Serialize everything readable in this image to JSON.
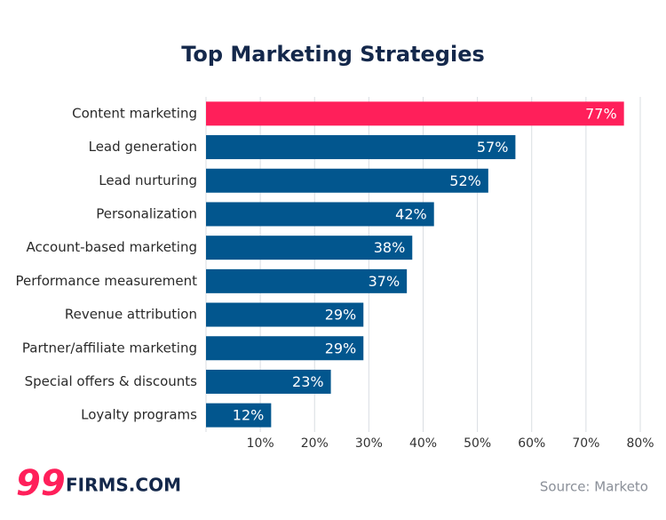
{
  "chart_data": {
    "type": "bar",
    "orientation": "horizontal",
    "title": "Top Marketing Strategies",
    "categories": [
      "Content marketing",
      "Lead generation",
      "Lead nurturing",
      "Personalization",
      "Account-based marketing",
      "Performance measurement",
      "Revenue attribution",
      "Partner/affiliate marketing",
      "Special offers & discounts",
      "Loyalty programs"
    ],
    "values": [
      77,
      57,
      52,
      42,
      38,
      37,
      29,
      29,
      23,
      12
    ],
    "value_labels": [
      "77%",
      "57%",
      "52%",
      "42%",
      "38%",
      "37%",
      "29%",
      "29%",
      "23%",
      "12%"
    ],
    "colors": [
      "#ff1f5a",
      "#02568e",
      "#02568e",
      "#02568e",
      "#02568e",
      "#02568e",
      "#02568e",
      "#02568e",
      "#02568e",
      "#02568e"
    ],
    "xlim": [
      0,
      80
    ],
    "xticks": [
      {
        "value": 10,
        "label": "10%"
      },
      {
        "value": 20,
        "label": "20%"
      },
      {
        "value": 30,
        "label": "30%"
      },
      {
        "value": 40,
        "label": "40%"
      },
      {
        "value": 50,
        "label": "50%"
      },
      {
        "value": 60,
        "label": "60%"
      },
      {
        "value": 70,
        "label": "70%"
      },
      {
        "value": 80,
        "label": "80%"
      }
    ],
    "grid": true
  },
  "logo": {
    "mark": "99",
    "text": "FIRMS.COM"
  },
  "source": "Source: Marketo"
}
